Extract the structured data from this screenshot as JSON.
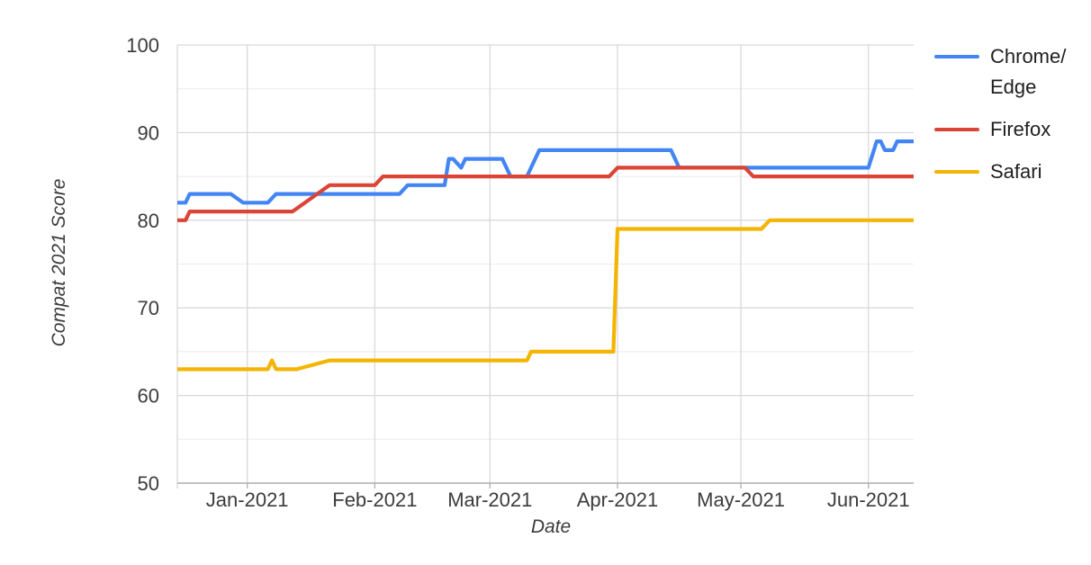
{
  "chart_data": {
    "type": "line",
    "title": "",
    "xlabel": "Date",
    "ylabel": "Compat 2021 Score",
    "grid": true,
    "legend_position": "right",
    "x_axis": {
      "ticks": [
        {
          "label": "Jan-2021",
          "date": "2021-01-01"
        },
        {
          "label": "Feb-2021",
          "date": "2021-02-01"
        },
        {
          "label": "Mar-2021",
          "date": "2021-03-01"
        },
        {
          "label": "Apr-2021",
          "date": "2021-04-01"
        },
        {
          "label": "May-2021",
          "date": "2021-05-01"
        },
        {
          "label": "Jun-2021",
          "date": "2021-06-01"
        }
      ],
      "range": [
        "2020-12-15",
        "2021-06-12"
      ]
    },
    "y_axis": {
      "min": 50,
      "max": 100,
      "major_ticks": [
        100,
        90,
        80,
        70,
        60,
        50
      ],
      "minor_ticks": [
        95,
        85,
        75,
        65,
        55
      ]
    },
    "series": [
      {
        "name": "Chrome/Edge",
        "color": "#4285f4",
        "points": [
          [
            "2020-12-15",
            82
          ],
          [
            "2020-12-17",
            82
          ],
          [
            "2020-12-18",
            83
          ],
          [
            "2020-12-28",
            83
          ],
          [
            "2020-12-31",
            82
          ],
          [
            "2021-01-06",
            82
          ],
          [
            "2021-01-08",
            83
          ],
          [
            "2021-02-07",
            83
          ],
          [
            "2021-02-09",
            84
          ],
          [
            "2021-02-18",
            84
          ],
          [
            "2021-02-19",
            87
          ],
          [
            "2021-02-20",
            87
          ],
          [
            "2021-02-22",
            86
          ],
          [
            "2021-02-23",
            87
          ],
          [
            "2021-03-04",
            87
          ],
          [
            "2021-03-06",
            85
          ],
          [
            "2021-03-10",
            85
          ],
          [
            "2021-03-13",
            88
          ],
          [
            "2021-04-14",
            88
          ],
          [
            "2021-04-16",
            86
          ],
          [
            "2021-06-01",
            86
          ],
          [
            "2021-06-03",
            89
          ],
          [
            "2021-06-04",
            89
          ],
          [
            "2021-06-05",
            88
          ],
          [
            "2021-06-07",
            88
          ],
          [
            "2021-06-08",
            89
          ],
          [
            "2021-06-12",
            89
          ]
        ]
      },
      {
        "name": "Firefox",
        "color": "#db4437",
        "points": [
          [
            "2020-12-15",
            80
          ],
          [
            "2020-12-17",
            80
          ],
          [
            "2020-12-18",
            81
          ],
          [
            "2021-01-12",
            81
          ],
          [
            "2021-01-21",
            84
          ],
          [
            "2021-02-01",
            84
          ],
          [
            "2021-02-03",
            85
          ],
          [
            "2021-03-30",
            85
          ],
          [
            "2021-04-01",
            86
          ],
          [
            "2021-05-02",
            86
          ],
          [
            "2021-05-04",
            85
          ],
          [
            "2021-06-12",
            85
          ]
        ]
      },
      {
        "name": "Safari",
        "color": "#f4b400",
        "points": [
          [
            "2020-12-15",
            63
          ],
          [
            "2021-01-06",
            63
          ],
          [
            "2021-01-07",
            64
          ],
          [
            "2021-01-08",
            63
          ],
          [
            "2021-01-13",
            63
          ],
          [
            "2021-01-21",
            64
          ],
          [
            "2021-03-10",
            64
          ],
          [
            "2021-03-11",
            65
          ],
          [
            "2021-03-31",
            65
          ],
          [
            "2021-04-01",
            79
          ],
          [
            "2021-05-06",
            79
          ],
          [
            "2021-05-08",
            80
          ],
          [
            "2021-06-12",
            80
          ]
        ]
      }
    ],
    "legend": [
      {
        "lines": [
          "Chrome/",
          "Edge"
        ],
        "color": "#4285f4"
      },
      {
        "lines": [
          "Firefox"
        ],
        "color": "#db4437"
      },
      {
        "lines": [
          "Safari"
        ],
        "color": "#f4b400"
      }
    ],
    "colors": {
      "grid_major": "#d9d9d9",
      "grid_minor": "#ebebeb",
      "axis_line": "#b0b0b0",
      "tick_label": "#3c3c3c"
    }
  }
}
